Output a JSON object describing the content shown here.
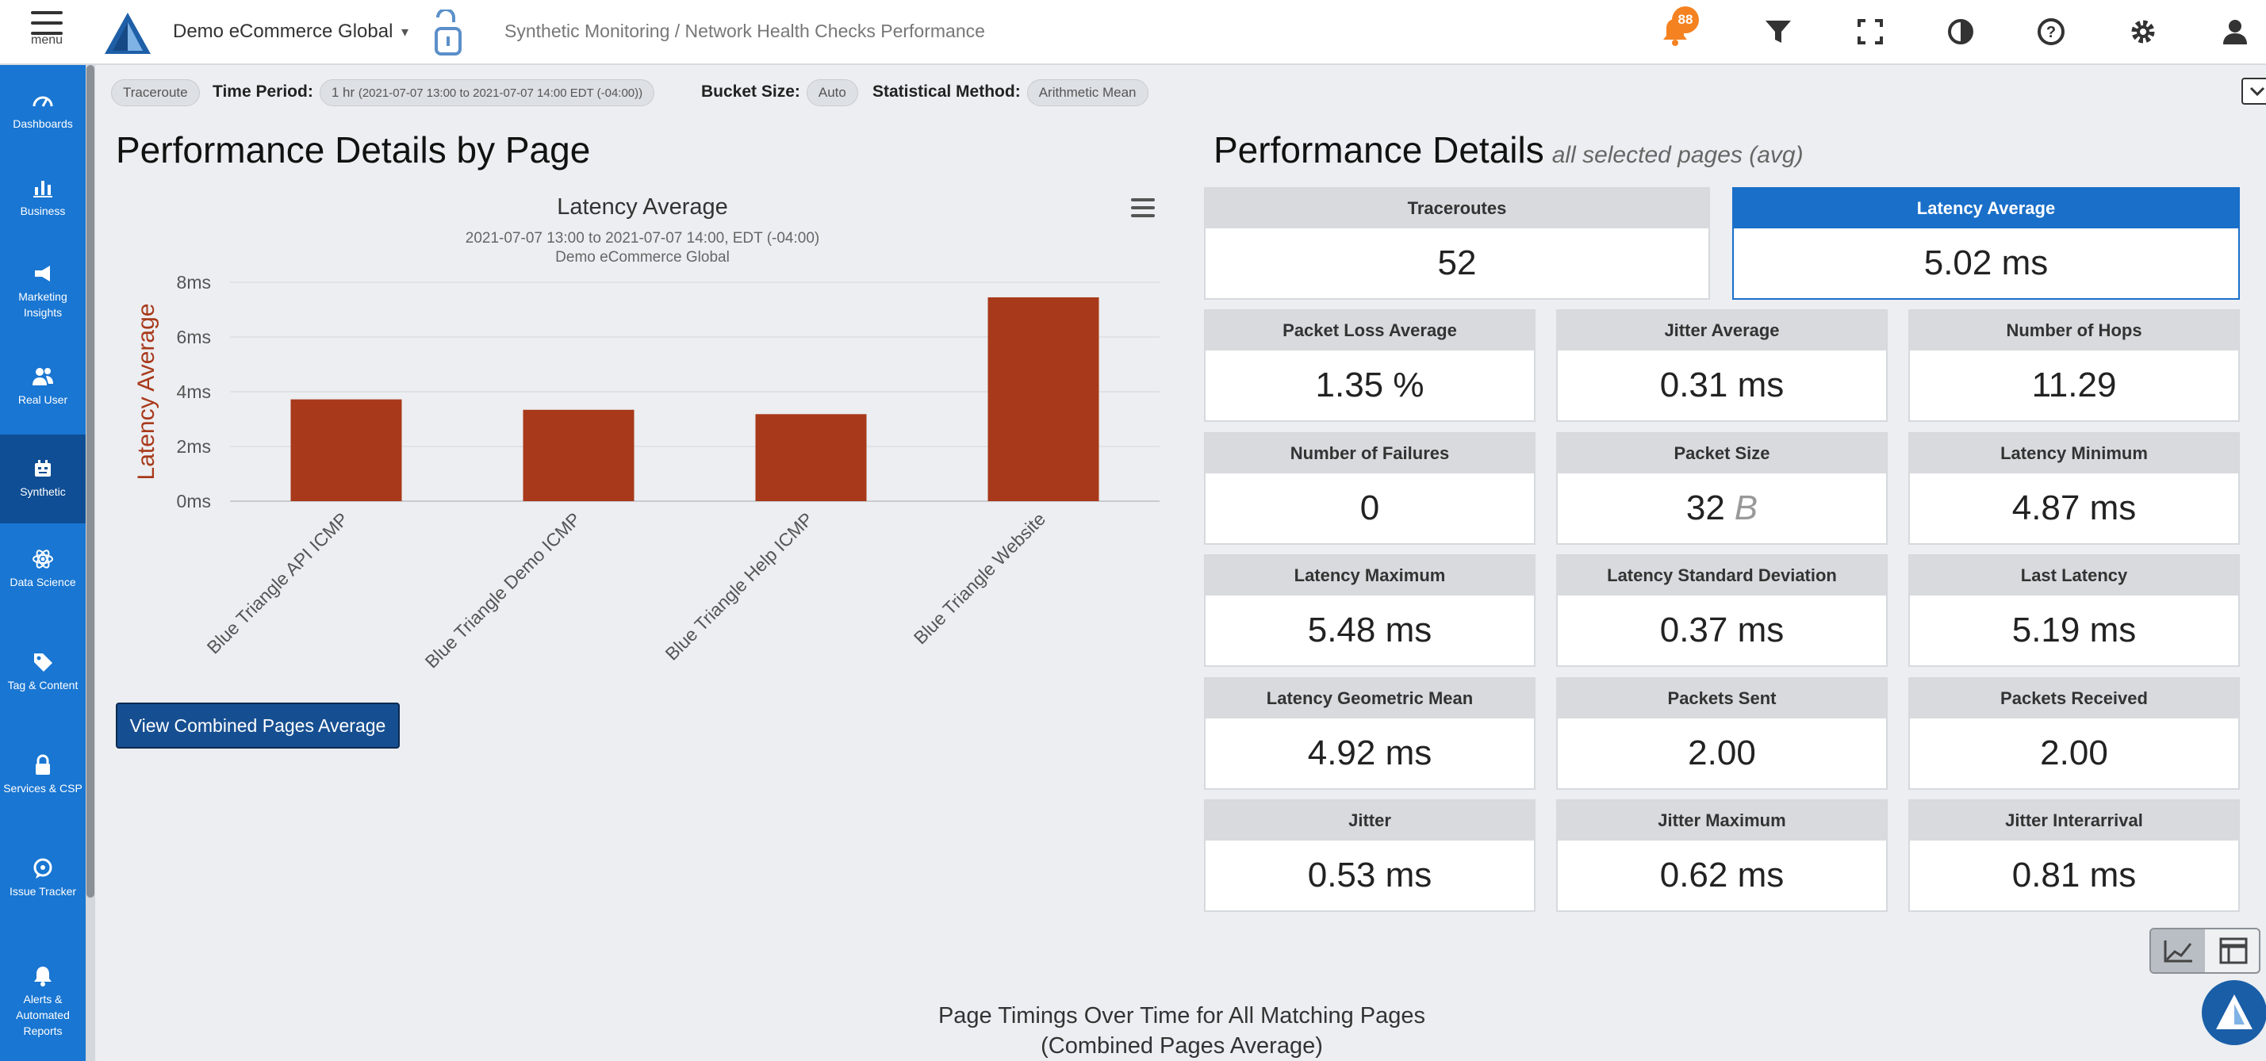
{
  "header": {
    "menu_label": "menu",
    "org_name": "Demo eCommerce Global",
    "breadcrumb": "Synthetic Monitoring / Network Health Checks Performance",
    "notification_count": "88",
    "icons": [
      "bell-icon",
      "filter-icon",
      "fullscreen-icon",
      "contrast-icon",
      "help-icon",
      "gear-icon",
      "user-icon"
    ]
  },
  "sidebar": {
    "items": [
      {
        "label": "Dashboards",
        "icon": "dashboard-icon"
      },
      {
        "label": "Business",
        "icon": "bar-chart-icon"
      },
      {
        "label": "Marketing Insights",
        "icon": "megaphone-icon"
      },
      {
        "label": "Real User",
        "icon": "users-icon"
      },
      {
        "label": "Synthetic",
        "icon": "robot-icon",
        "active": true
      },
      {
        "label": "Data Science",
        "icon": "atom-icon"
      },
      {
        "label": "Tag & Content",
        "icon": "tag-icon"
      },
      {
        "label": "Services & CSP",
        "icon": "lock-icon"
      },
      {
        "label": "Issue Tracker",
        "icon": "chat-icon"
      },
      {
        "label": "Alerts & Automated Reports",
        "icon": "alert-bell-icon"
      }
    ]
  },
  "filters": {
    "test_type": "Traceroute",
    "time_period_label": "Time Period:",
    "time_period_value": "1 hr",
    "time_period_detail": "(2021-07-07 13:00 to 2021-07-07 14:00 EDT (-04:00))",
    "bucket_label": "Bucket Size:",
    "bucket_value": "Auto",
    "method_label": "Statistical Method:",
    "method_value": "Arithmetic Mean"
  },
  "left_panel": {
    "title": "Performance Details by Page",
    "combined_button": "View Combined Pages Average"
  },
  "chart_data": {
    "type": "bar",
    "title": "Latency Average",
    "subtitle": [
      "2021-07-07 13:00 to 2021-07-07 14:00, EDT (-04:00)",
      "Demo eCommerce Global"
    ],
    "xlabel": "",
    "ylabel": "Latency Average",
    "categories": [
      "Blue Triangle API ICMP",
      "Blue Triangle Demo ICMP",
      "Blue Triangle Help ICMP",
      "Blue Triangle Website"
    ],
    "values": [
      3.72,
      3.34,
      3.18,
      7.45
    ],
    "ylim": [
      0,
      8
    ],
    "yticks": [
      0,
      2,
      4,
      6,
      8
    ],
    "ytick_labels": [
      "0ms",
      "2ms",
      "4ms",
      "6ms",
      "8ms"
    ],
    "bar_color": "#a8391a",
    "grid": true
  },
  "right_panel": {
    "title": "Performance Details",
    "subtitle": "all selected pages (avg)",
    "top_cards": [
      {
        "label": "Traceroutes",
        "value": "52",
        "selected": false
      },
      {
        "label": "Latency Average",
        "value": "5.02 ms",
        "selected": true
      }
    ],
    "cards": [
      {
        "label": "Packet Loss Average",
        "value": "1.35 %"
      },
      {
        "label": "Jitter Average",
        "value": "0.31 ms"
      },
      {
        "label": "Number of Hops",
        "value": "11.29"
      },
      {
        "label": "Number of Failures",
        "value": "0"
      },
      {
        "label": "Packet Size",
        "value": "32",
        "unit": "B"
      },
      {
        "label": "Latency Minimum",
        "value": "4.87 ms"
      },
      {
        "label": "Latency Maximum",
        "value": "5.48 ms"
      },
      {
        "label": "Latency Standard Deviation",
        "value": "0.37 ms"
      },
      {
        "label": "Last Latency",
        "value": "5.19 ms"
      },
      {
        "label": "Latency Geometric Mean",
        "value": "4.92 ms"
      },
      {
        "label": "Packets Sent",
        "value": "2.00"
      },
      {
        "label": "Packets Received",
        "value": "2.00"
      },
      {
        "label": "Jitter",
        "value": "0.53 ms"
      },
      {
        "label": "Jitter Maximum",
        "value": "0.62 ms"
      },
      {
        "label": "Jitter Interarrival",
        "value": "0.81 ms"
      }
    ]
  },
  "bottom": {
    "title_line1": "Page Timings Over Time for All Matching Pages",
    "title_line2": "(Combined Pages Average)"
  },
  "colors": {
    "sidebar": "#1976d2",
    "sidebar_active": "#0f4e94",
    "accent": "#1a6fc9",
    "bar": "#a8391a",
    "badge": "#f58220"
  }
}
